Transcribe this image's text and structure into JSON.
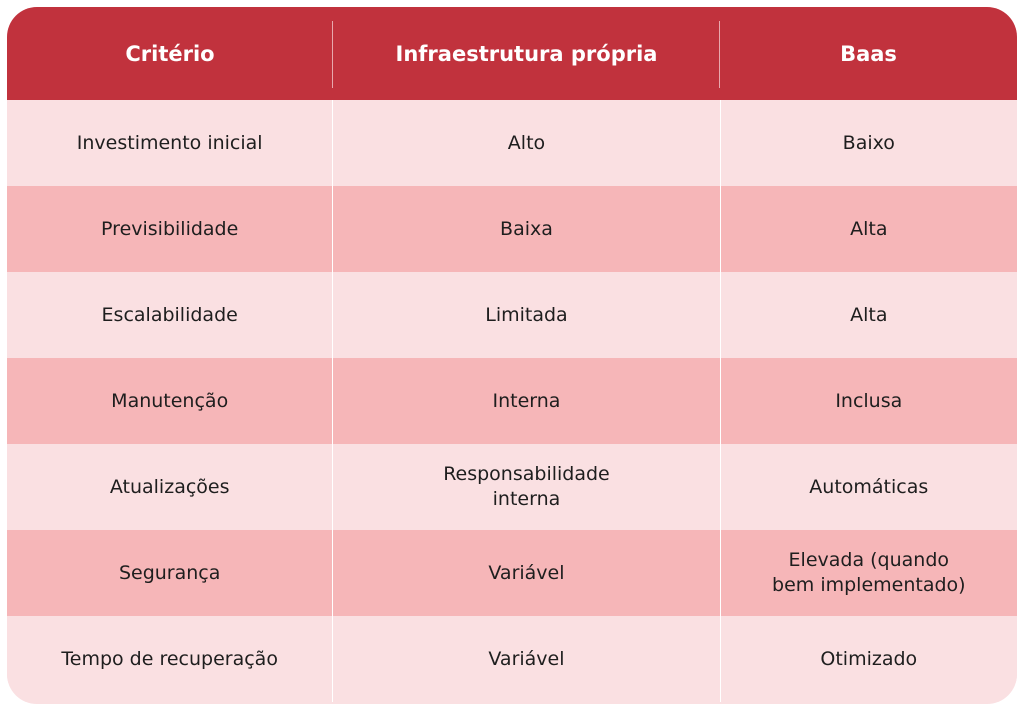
{
  "table": {
    "headers": [
      "Critério",
      "Infraestrutura própria",
      "Baas"
    ],
    "rows": [
      [
        "Investimento inicial",
        "Alto",
        "Baixo"
      ],
      [
        "Previsibilidade",
        "Baixa",
        "Alta"
      ],
      [
        "Escalabilidade",
        "Limitada",
        "Alta"
      ],
      [
        "Manutenção",
        "Interna",
        "Inclusa"
      ],
      [
        "Atualizações",
        "Responsabilidade\ninterna",
        "Automáticas"
      ],
      [
        "Segurança",
        "Variável",
        "Elevada (quando\nbem implementado)"
      ],
      [
        "Tempo de recuperação",
        "Variável",
        "Otimizado"
      ]
    ]
  },
  "colors": {
    "header_bg": "#c1323d",
    "row_light": "#fae0e2",
    "row_dark": "#f6b6b8"
  }
}
